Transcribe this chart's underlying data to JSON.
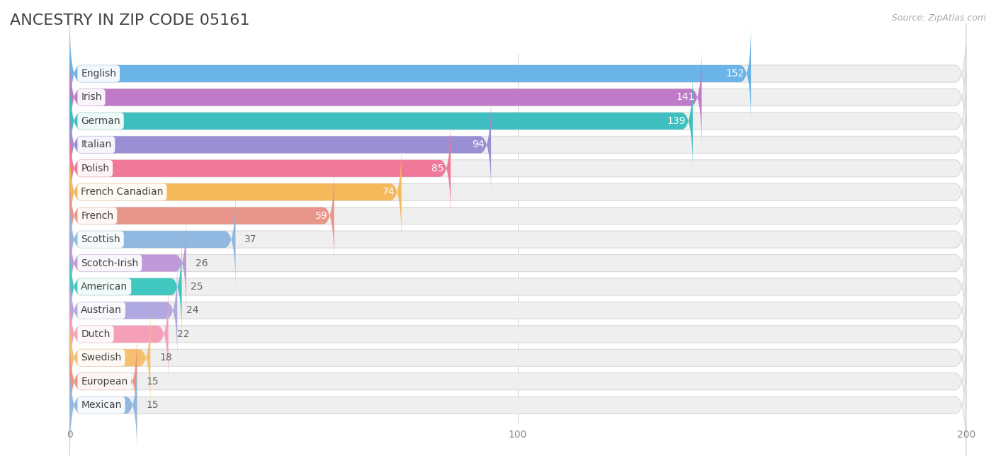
{
  "title": "ANCESTRY IN ZIP CODE 05161",
  "source": "Source: ZipAtlas.com",
  "categories": [
    "English",
    "Irish",
    "German",
    "Italian",
    "Polish",
    "French Canadian",
    "French",
    "Scottish",
    "Scotch-Irish",
    "American",
    "Austrian",
    "Dutch",
    "Swedish",
    "European",
    "Mexican"
  ],
  "values": [
    152,
    141,
    139,
    94,
    85,
    74,
    59,
    37,
    26,
    25,
    24,
    22,
    18,
    15,
    15
  ],
  "bar_colors": [
    "#6ab4e8",
    "#c07bc8",
    "#40bfc0",
    "#9b8fd4",
    "#f07898",
    "#f5b85a",
    "#e8958a",
    "#90b8e0",
    "#c09ad8",
    "#40c8c0",
    "#b0a8e0",
    "#f5a0b8",
    "#f5c070",
    "#f09080",
    "#90b8e0"
  ],
  "bg_track_color": "#efefef",
  "xlim_max": 200,
  "background_color": "#ffffff",
  "title_fontsize": 16,
  "bar_height": 0.72,
  "value_fontsize": 10,
  "label_fontsize": 10,
  "value_threshold_inside": 50
}
